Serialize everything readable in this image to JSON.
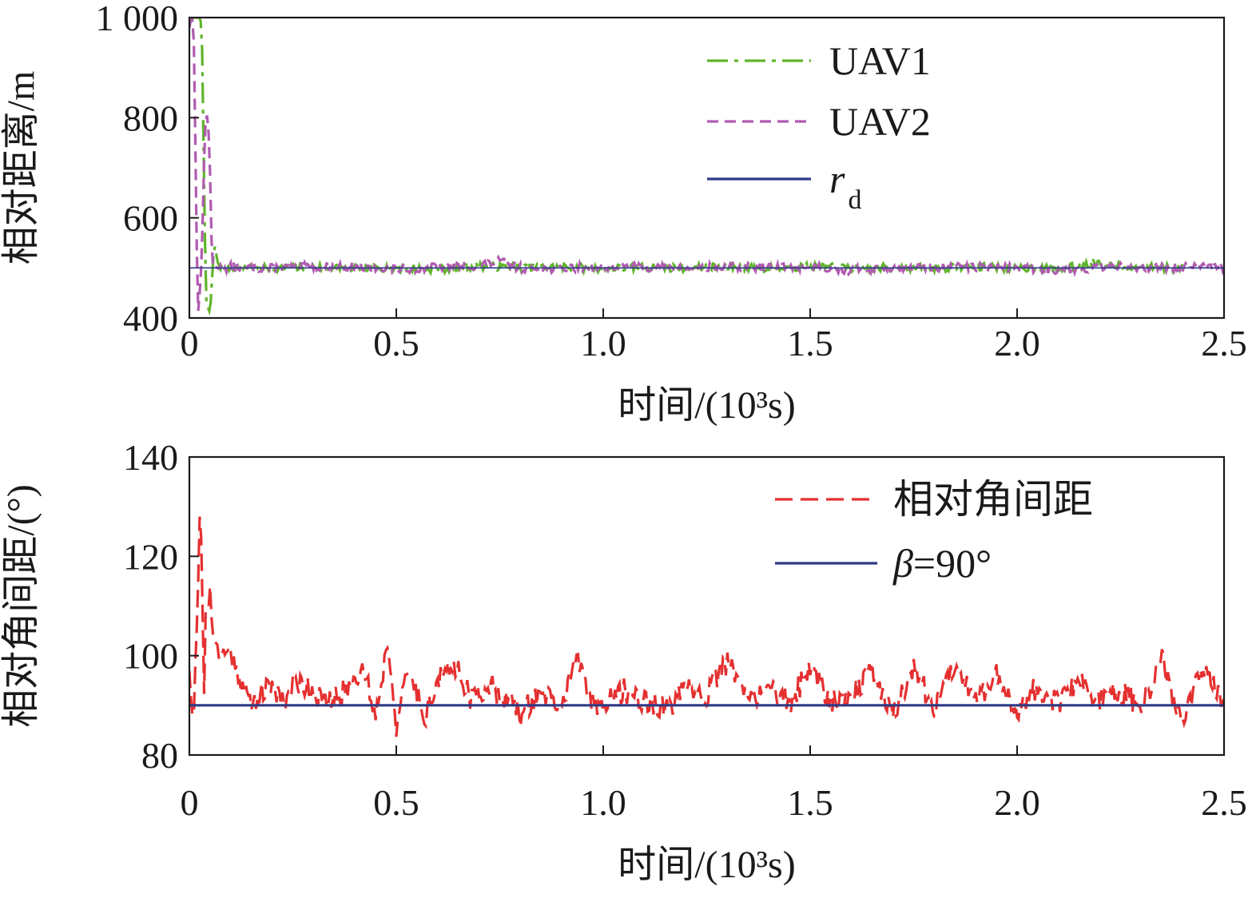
{
  "chart_data": [
    {
      "type": "line",
      "xlabel": "时间/(10³s)",
      "ylabel": "相对距离/m",
      "xlim": [
        0,
        2.5
      ],
      "ylim": [
        400,
        1000
      ],
      "xticks": [
        0,
        0.5,
        1.0,
        1.5,
        2.0,
        2.5
      ],
      "xtick_labels": [
        "0",
        "0.5",
        "1.0",
        "1.5",
        "2.0",
        "2.5"
      ],
      "yticks": [
        400,
        600,
        800,
        1000
      ],
      "ytick_labels": [
        "400",
        "600",
        "800",
        "1 000"
      ],
      "grid": false,
      "legend_position": "top-right",
      "series": [
        {
          "name": "UAV1",
          "color": "#5fb42b",
          "style": "dash-dot",
          "x": [
            0,
            0.01,
            0.02,
            0.025,
            0.03,
            0.035,
            0.04,
            0.045,
            0.05,
            0.06,
            0.07,
            0.1,
            0.15,
            0.2,
            0.3,
            0.4,
            0.5,
            0.6,
            0.7,
            0.8,
            0.9,
            1.0,
            1.1,
            1.2,
            1.3,
            1.4,
            1.5,
            1.6,
            1.7,
            1.8,
            1.9,
            2.0,
            2.1,
            2.2,
            2.3,
            2.4
          ],
          "values": [
            1000,
            1000,
            1000,
            1000,
            985,
            700,
            440,
            420,
            410,
            550,
            505,
            500,
            503,
            498,
            502,
            499,
            501,
            497,
            504,
            500,
            502,
            499,
            501,
            500,
            502,
            498,
            503,
            499,
            501,
            500,
            502,
            500,
            498,
            512,
            501,
            500
          ],
          "noise": 8,
          "seed": 7
        },
        {
          "name": "UAV2",
          "color": "#b05bb0",
          "style": "dashed",
          "x": [
            0,
            0.005,
            0.01,
            0.015,
            0.02,
            0.025,
            0.03,
            0.035,
            0.04,
            0.045,
            0.05,
            0.055,
            0.06,
            0.07,
            0.1,
            0.15,
            0.2,
            0.3,
            0.4,
            0.5,
            0.6,
            0.7,
            0.75,
            0.8,
            0.9,
            1.0,
            1.1,
            1.2,
            1.3,
            1.4,
            1.5,
            1.6,
            1.7,
            1.8,
            1.9,
            2.0,
            2.1,
            2.2,
            2.3,
            2.4,
            2.5
          ],
          "values": [
            980,
            1000,
            990,
            720,
            400,
            450,
            520,
            700,
            810,
            800,
            690,
            500,
            505,
            498,
            502,
            500,
            499,
            503,
            501,
            497,
            502,
            505,
            513,
            500,
            499,
            503,
            501,
            498,
            502,
            500,
            503,
            495,
            501,
            500,
            502,
            499,
            497,
            500,
            502,
            501,
            500
          ],
          "noise": 9,
          "seed": 13
        },
        {
          "name": "r_d",
          "color": "#2e3a87",
          "style": "solid",
          "x": [
            0,
            2.5
          ],
          "values": [
            500,
            500
          ]
        }
      ],
      "legend": [
        {
          "label": "UAV1",
          "series": 0
        },
        {
          "label": "UAV2",
          "series": 1
        },
        {
          "label": "r",
          "subscript": "d",
          "series": 2
        }
      ]
    },
    {
      "type": "line",
      "xlabel": "时间/(10³s)",
      "ylabel": "相对角间距/(°)",
      "xlim": [
        0,
        2.5
      ],
      "ylim": [
        80,
        140
      ],
      "xticks": [
        0,
        0.5,
        1.0,
        1.5,
        2.0,
        2.5
      ],
      "xtick_labels": [
        "0",
        "0.5",
        "1.0",
        "1.5",
        "2.0",
        "2.5"
      ],
      "yticks": [
        80,
        100,
        120,
        140
      ],
      "ytick_labels": [
        "80",
        "100",
        "120",
        "140"
      ],
      "grid": false,
      "legend_position": "top-right",
      "series": [
        {
          "name": "相对角间距",
          "color": "#e53030",
          "style": "dashed-jagged",
          "x": [
            0,
            0.005,
            0.01,
            0.015,
            0.02,
            0.025,
            0.03,
            0.035,
            0.04,
            0.045,
            0.05,
            0.055,
            0.06,
            0.07,
            0.08,
            0.1,
            0.12,
            0.15,
            0.17,
            0.2,
            0.23,
            0.26,
            0.3,
            0.33,
            0.38,
            0.42,
            0.45,
            0.48,
            0.5,
            0.53,
            0.57,
            0.6,
            0.65,
            0.68,
            0.72,
            0.76,
            0.8,
            0.85,
            0.9,
            0.93,
            0.97,
            1.0,
            1.05,
            1.1,
            1.15,
            1.2,
            1.25,
            1.3,
            1.35,
            1.4,
            1.45,
            1.5,
            1.55,
            1.6,
            1.65,
            1.7,
            1.75,
            1.8,
            1.85,
            1.9,
            1.95,
            2.0,
            2.05,
            2.1,
            2.15,
            2.2,
            2.25,
            2.3,
            2.35,
            2.4,
            2.45,
            2.5
          ],
          "values": [
            97,
            90,
            86,
            100,
            110,
            128,
            122,
            89,
            112,
            108,
            114,
            105,
            103,
            102,
            100,
            101,
            96,
            90,
            92,
            94,
            91,
            95,
            93,
            90,
            93,
            98,
            88,
            103,
            86,
            97,
            88,
            95,
            98,
            91,
            94,
            92,
            88,
            93,
            89,
            100,
            91,
            90,
            93,
            91,
            89,
            93,
            92,
            99,
            91,
            94,
            90,
            98,
            91,
            92,
            97,
            88,
            98,
            89,
            99,
            91,
            96,
            89,
            94,
            90,
            95,
            91,
            93,
            89,
            99,
            86,
            98,
            90
          ],
          "noise": 2.5,
          "seed": 21
        },
        {
          "name": "β=90°",
          "color": "#2e3a87",
          "style": "solid",
          "x": [
            0,
            2.5
          ],
          "values": [
            90,
            90
          ]
        }
      ],
      "legend": [
        {
          "label": "相对角间距",
          "series": 0
        },
        {
          "label": "β=90°",
          "series": 1
        }
      ]
    }
  ]
}
